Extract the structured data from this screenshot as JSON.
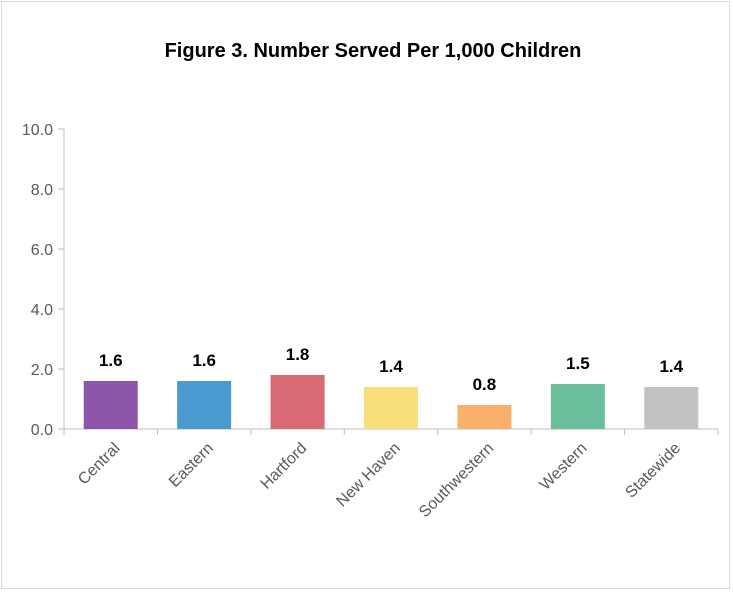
{
  "chart_data": {
    "type": "bar",
    "title": "Figure 3. Number Served Per 1,000 Children",
    "xlabel": "",
    "ylabel": "",
    "categories": [
      "Central",
      "Eastern",
      "Hartford",
      "New Haven",
      "Southwestern",
      "Western",
      "Statewide"
    ],
    "values": [
      1.6,
      1.6,
      1.8,
      1.4,
      0.8,
      1.5,
      1.4
    ],
    "value_labels": [
      "1.6",
      "1.6",
      "1.8",
      "1.4",
      "0.8",
      "1.5",
      "1.4"
    ],
    "bar_colors": [
      "#8e56a8",
      "#4a9ad0",
      "#d96b75",
      "#f8df7c",
      "#f9b06a",
      "#6abf9b",
      "#c2c2c2"
    ],
    "ylim": [
      0,
      10
    ],
    "yticks": [
      "0.0",
      "2.0",
      "4.0",
      "6.0",
      "8.0",
      "10.0"
    ],
    "grid": false,
    "legend": "none"
  }
}
